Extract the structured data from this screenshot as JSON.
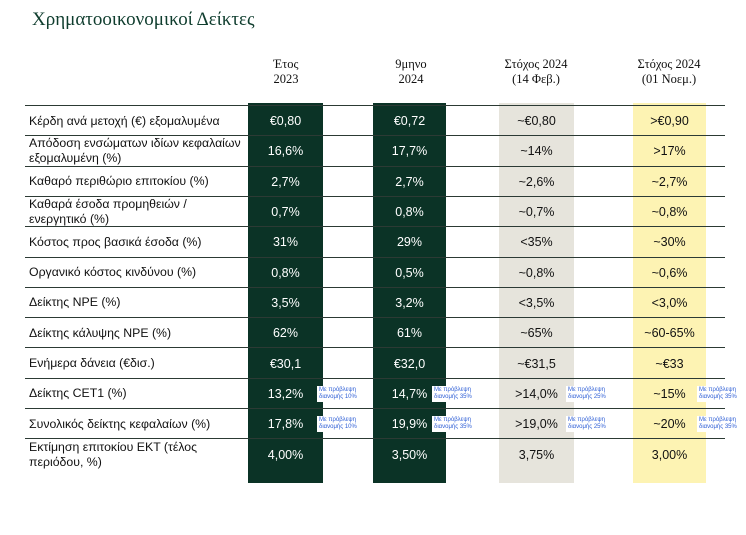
{
  "title": "Χρηματοοικονομικοί Δείκτες",
  "columns": [
    {
      "line1": "Έτος",
      "line2": "2023"
    },
    {
      "line1": "9μηνο",
      "line2": "2024"
    },
    {
      "line1": "Στόχος 2024",
      "line2": "(14 Φεβ.)"
    },
    {
      "line1": "Στόχος 2024",
      "line2": "(01 Νοεμ.)"
    }
  ],
  "colors": {
    "dark": "#0b3326",
    "grey": "#e6e4dc",
    "yellow": "#fdf3b3",
    "line": "#2c3a34"
  },
  "rows": [
    {
      "label": "Κέρδη ανά μετοχή (€) εξομαλυμένα",
      "values": [
        "€0,80",
        "€0,72",
        "~€0,80",
        ">€0,90"
      ]
    },
    {
      "label": "Απόδοση ενσώματων ιδίων κεφαλαίων εξομαλυμένη (%)",
      "values": [
        "16,6%",
        "17,7%",
        "~14%",
        ">17%"
      ]
    },
    {
      "label": "Καθαρό περιθώριο επιτοκίου (%)",
      "values": [
        "2,7%",
        "2,7%",
        "~2,6%",
        "~2,7%"
      ]
    },
    {
      "label": "Καθαρά έσοδα προμηθειών / ενεργητικό (%)",
      "values": [
        "0,7%",
        "0,8%",
        "~0,7%",
        "~0,8%"
      ]
    },
    {
      "label": "Κόστος προς βασικά έσοδα (%)",
      "values": [
        "31%",
        "29%",
        "<35%",
        "~30%"
      ]
    },
    {
      "label": "Οργανικό κόστος κινδύνου (%)",
      "values": [
        "0,8%",
        "0,5%",
        "~0,8%",
        "~0,6%"
      ]
    },
    {
      "label": "Δείκτης NPE (%)",
      "values": [
        "3,5%",
        "3,2%",
        "<3,5%",
        "<3,0%"
      ]
    },
    {
      "label": "Δείκτης κάλυψης NPE (%)",
      "values": [
        "62%",
        "61%",
        "~65%",
        "~60-65%"
      ]
    },
    {
      "label": "Ενήμερα δάνεια (€δισ.)",
      "values": [
        "€30,1",
        "€32,0",
        "~€31,5",
        "~€33"
      ]
    },
    {
      "label": "Δείκτης CET1 (%)",
      "values": [
        "13,2%",
        "14,7%",
        ">14,0%",
        "~15%"
      ],
      "notes": [
        [
          "Με πρόβλεψη",
          "διανομής 10%"
        ],
        [
          "Με πρόβλεψη",
          "διανομής 35%"
        ],
        [
          "Με πρόβλεψη",
          "διανομής 25%"
        ],
        [
          "Με πρόβλεψη",
          "διανομής 35%"
        ]
      ]
    },
    {
      "label": "Συνολικός δείκτης κεφαλαίων (%)",
      "values": [
        "17,8%",
        "19,9%",
        ">19,0%",
        "~20%"
      ],
      "notes": [
        [
          "Με πρόβλεψη",
          "διανομής 10%"
        ],
        [
          "Με πρόβλεψη",
          "διανομής 35%"
        ],
        [
          "Με πρόβλεψη",
          "διανομής 25%"
        ],
        [
          "Με πρόβλεψη",
          "διανομής 35%"
        ]
      ]
    },
    {
      "label": "Εκτίμηση επιτοκίου ΕΚΤ (τέλος περιόδου, %)",
      "values": [
        "4,00%",
        "3,50%",
        "3,75%",
        "3,00%"
      ]
    }
  ]
}
